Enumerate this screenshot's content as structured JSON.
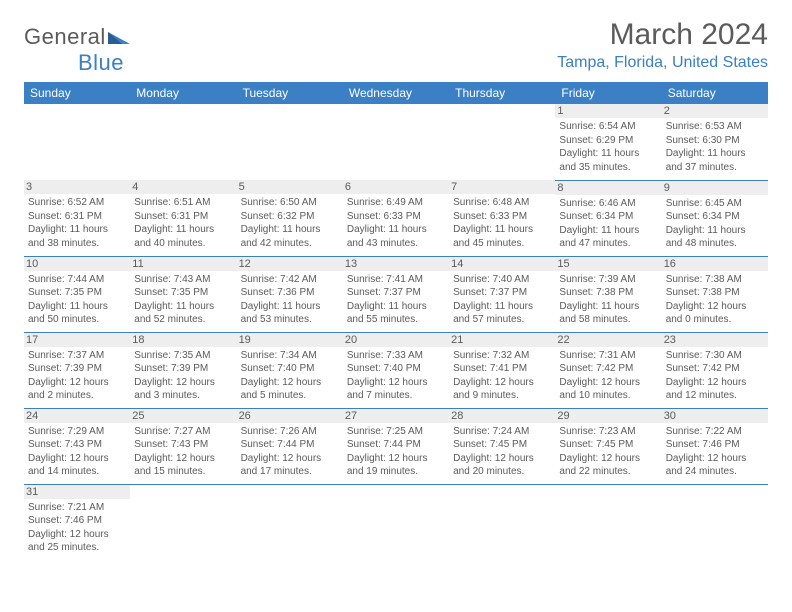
{
  "logo": {
    "word1": "General",
    "word2": "Blue"
  },
  "title": "March 2024",
  "location": "Tampa, Florida, United States",
  "colors": {
    "brand_blue": "#3b7fc4",
    "text_gray": "#5b5b5b",
    "daynum_bg": "#eeeeee",
    "bg": "#ffffff"
  },
  "weekdays": [
    "Sunday",
    "Monday",
    "Tuesday",
    "Wednesday",
    "Thursday",
    "Friday",
    "Saturday"
  ],
  "weeks": [
    [
      null,
      null,
      null,
      null,
      null,
      {
        "n": "1",
        "sr": "Sunrise: 6:54 AM",
        "ss": "Sunset: 6:29 PM",
        "d1": "Daylight: 11 hours",
        "d2": "and 35 minutes."
      },
      {
        "n": "2",
        "sr": "Sunrise: 6:53 AM",
        "ss": "Sunset: 6:30 PM",
        "d1": "Daylight: 11 hours",
        "d2": "and 37 minutes."
      }
    ],
    [
      {
        "n": "3",
        "sr": "Sunrise: 6:52 AM",
        "ss": "Sunset: 6:31 PM",
        "d1": "Daylight: 11 hours",
        "d2": "and 38 minutes."
      },
      {
        "n": "4",
        "sr": "Sunrise: 6:51 AM",
        "ss": "Sunset: 6:31 PM",
        "d1": "Daylight: 11 hours",
        "d2": "and 40 minutes."
      },
      {
        "n": "5",
        "sr": "Sunrise: 6:50 AM",
        "ss": "Sunset: 6:32 PM",
        "d1": "Daylight: 11 hours",
        "d2": "and 42 minutes."
      },
      {
        "n": "6",
        "sr": "Sunrise: 6:49 AM",
        "ss": "Sunset: 6:33 PM",
        "d1": "Daylight: 11 hours",
        "d2": "and 43 minutes."
      },
      {
        "n": "7",
        "sr": "Sunrise: 6:48 AM",
        "ss": "Sunset: 6:33 PM",
        "d1": "Daylight: 11 hours",
        "d2": "and 45 minutes."
      },
      {
        "n": "8",
        "sr": "Sunrise: 6:46 AM",
        "ss": "Sunset: 6:34 PM",
        "d1": "Daylight: 11 hours",
        "d2": "and 47 minutes."
      },
      {
        "n": "9",
        "sr": "Sunrise: 6:45 AM",
        "ss": "Sunset: 6:34 PM",
        "d1": "Daylight: 11 hours",
        "d2": "and 48 minutes."
      }
    ],
    [
      {
        "n": "10",
        "sr": "Sunrise: 7:44 AM",
        "ss": "Sunset: 7:35 PM",
        "d1": "Daylight: 11 hours",
        "d2": "and 50 minutes."
      },
      {
        "n": "11",
        "sr": "Sunrise: 7:43 AM",
        "ss": "Sunset: 7:35 PM",
        "d1": "Daylight: 11 hours",
        "d2": "and 52 minutes."
      },
      {
        "n": "12",
        "sr": "Sunrise: 7:42 AM",
        "ss": "Sunset: 7:36 PM",
        "d1": "Daylight: 11 hours",
        "d2": "and 53 minutes."
      },
      {
        "n": "13",
        "sr": "Sunrise: 7:41 AM",
        "ss": "Sunset: 7:37 PM",
        "d1": "Daylight: 11 hours",
        "d2": "and 55 minutes."
      },
      {
        "n": "14",
        "sr": "Sunrise: 7:40 AM",
        "ss": "Sunset: 7:37 PM",
        "d1": "Daylight: 11 hours",
        "d2": "and 57 minutes."
      },
      {
        "n": "15",
        "sr": "Sunrise: 7:39 AM",
        "ss": "Sunset: 7:38 PM",
        "d1": "Daylight: 11 hours",
        "d2": "and 58 minutes."
      },
      {
        "n": "16",
        "sr": "Sunrise: 7:38 AM",
        "ss": "Sunset: 7:38 PM",
        "d1": "Daylight: 12 hours",
        "d2": "and 0 minutes."
      }
    ],
    [
      {
        "n": "17",
        "sr": "Sunrise: 7:37 AM",
        "ss": "Sunset: 7:39 PM",
        "d1": "Daylight: 12 hours",
        "d2": "and 2 minutes."
      },
      {
        "n": "18",
        "sr": "Sunrise: 7:35 AM",
        "ss": "Sunset: 7:39 PM",
        "d1": "Daylight: 12 hours",
        "d2": "and 3 minutes."
      },
      {
        "n": "19",
        "sr": "Sunrise: 7:34 AM",
        "ss": "Sunset: 7:40 PM",
        "d1": "Daylight: 12 hours",
        "d2": "and 5 minutes."
      },
      {
        "n": "20",
        "sr": "Sunrise: 7:33 AM",
        "ss": "Sunset: 7:40 PM",
        "d1": "Daylight: 12 hours",
        "d2": "and 7 minutes."
      },
      {
        "n": "21",
        "sr": "Sunrise: 7:32 AM",
        "ss": "Sunset: 7:41 PM",
        "d1": "Daylight: 12 hours",
        "d2": "and 9 minutes."
      },
      {
        "n": "22",
        "sr": "Sunrise: 7:31 AM",
        "ss": "Sunset: 7:42 PM",
        "d1": "Daylight: 12 hours",
        "d2": "and 10 minutes."
      },
      {
        "n": "23",
        "sr": "Sunrise: 7:30 AM",
        "ss": "Sunset: 7:42 PM",
        "d1": "Daylight: 12 hours",
        "d2": "and 12 minutes."
      }
    ],
    [
      {
        "n": "24",
        "sr": "Sunrise: 7:29 AM",
        "ss": "Sunset: 7:43 PM",
        "d1": "Daylight: 12 hours",
        "d2": "and 14 minutes."
      },
      {
        "n": "25",
        "sr": "Sunrise: 7:27 AM",
        "ss": "Sunset: 7:43 PM",
        "d1": "Daylight: 12 hours",
        "d2": "and 15 minutes."
      },
      {
        "n": "26",
        "sr": "Sunrise: 7:26 AM",
        "ss": "Sunset: 7:44 PM",
        "d1": "Daylight: 12 hours",
        "d2": "and 17 minutes."
      },
      {
        "n": "27",
        "sr": "Sunrise: 7:25 AM",
        "ss": "Sunset: 7:44 PM",
        "d1": "Daylight: 12 hours",
        "d2": "and 19 minutes."
      },
      {
        "n": "28",
        "sr": "Sunrise: 7:24 AM",
        "ss": "Sunset: 7:45 PM",
        "d1": "Daylight: 12 hours",
        "d2": "and 20 minutes."
      },
      {
        "n": "29",
        "sr": "Sunrise: 7:23 AM",
        "ss": "Sunset: 7:45 PM",
        "d1": "Daylight: 12 hours",
        "d2": "and 22 minutes."
      },
      {
        "n": "30",
        "sr": "Sunrise: 7:22 AM",
        "ss": "Sunset: 7:46 PM",
        "d1": "Daylight: 12 hours",
        "d2": "and 24 minutes."
      }
    ],
    [
      {
        "n": "31",
        "sr": "Sunrise: 7:21 AM",
        "ss": "Sunset: 7:46 PM",
        "d1": "Daylight: 12 hours",
        "d2": "and 25 minutes."
      },
      null,
      null,
      null,
      null,
      null,
      null
    ]
  ]
}
